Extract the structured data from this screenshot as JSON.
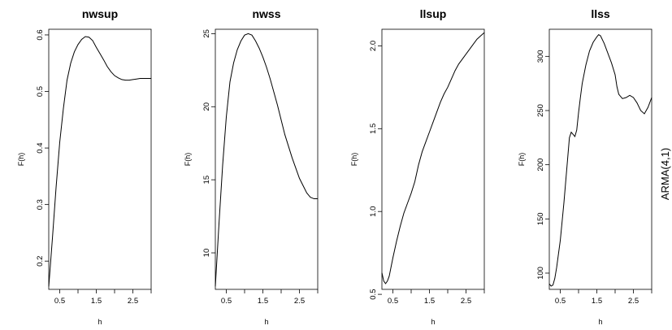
{
  "side_label": "ARMA(4,1)",
  "chart_data": [
    {
      "type": "line",
      "title": "nwsup",
      "xlabel": "h",
      "ylabel": "F(h)",
      "xlim": [
        0.2,
        3.0
      ],
      "ylim": [
        0.15,
        0.61
      ],
      "xticks": [
        "0.5",
        "1.5",
        "2.5"
      ],
      "xtick_values": [
        0.5,
        1.5,
        2.5
      ],
      "xminor": [
        1.0,
        2.0,
        3.0
      ],
      "yticks": [
        "0.2",
        "0.3",
        "0.4",
        "0.5",
        "0.6"
      ],
      "ytick_values": [
        0.2,
        0.3,
        0.4,
        0.5,
        0.6
      ],
      "series": [
        {
          "x": [
            0.2,
            0.3,
            0.4,
            0.5,
            0.6,
            0.7,
            0.8,
            0.9,
            1.0,
            1.1,
            1.2,
            1.3,
            1.4,
            1.5,
            1.6,
            1.7,
            1.8,
            1.9,
            2.0,
            2.1,
            2.2,
            2.3,
            2.4,
            2.5,
            2.6,
            2.7,
            2.8,
            2.9,
            3.0
          ],
          "y": [
            0.155,
            0.24,
            0.33,
            0.41,
            0.47,
            0.52,
            0.55,
            0.57,
            0.583,
            0.592,
            0.597,
            0.596,
            0.59,
            0.578,
            0.567,
            0.556,
            0.544,
            0.535,
            0.528,
            0.524,
            0.521,
            0.52,
            0.52,
            0.521,
            0.522,
            0.523,
            0.523,
            0.523,
            0.523
          ]
        }
      ]
    },
    {
      "type": "line",
      "title": "nwss",
      "xlabel": "h",
      "ylabel": "F(h)",
      "xlim": [
        0.2,
        3.0
      ],
      "ylim": [
        7.5,
        25.3
      ],
      "xticks": [
        "0.5",
        "1.5",
        "2.5"
      ],
      "xtick_values": [
        0.5,
        1.5,
        2.5
      ],
      "xminor": [
        1.0,
        2.0,
        3.0
      ],
      "yticks": [
        "10",
        "15",
        "20",
        "25"
      ],
      "ytick_values": [
        10,
        15,
        20,
        25
      ],
      "series": [
        {
          "x": [
            0.2,
            0.3,
            0.4,
            0.5,
            0.6,
            0.7,
            0.8,
            0.9,
            1.0,
            1.1,
            1.2,
            1.3,
            1.4,
            1.5,
            1.6,
            1.7,
            1.8,
            1.9,
            2.0,
            2.1,
            2.2,
            2.3,
            2.4,
            2.5,
            2.6,
            2.7,
            2.8,
            2.9,
            3.0
          ],
          "y": [
            7.7,
            12.0,
            16.0,
            19.3,
            21.7,
            23.0,
            23.9,
            24.5,
            24.9,
            25.0,
            24.9,
            24.5,
            24.0,
            23.4,
            22.7,
            21.9,
            21.0,
            20.1,
            19.1,
            18.1,
            17.3,
            16.5,
            15.8,
            15.1,
            14.6,
            14.1,
            13.8,
            13.7,
            13.7
          ]
        }
      ]
    },
    {
      "type": "line",
      "title": "llsup",
      "xlabel": "h",
      "ylabel": "F(h)",
      "xlim": [
        0.2,
        3.0
      ],
      "ylim": [
        0.53,
        2.1
      ],
      "xticks": [
        "0.5",
        "1.5",
        "2.5"
      ],
      "xtick_values": [
        0.5,
        1.5,
        2.5
      ],
      "xminor": [
        1.0,
        2.0,
        3.0
      ],
      "yticks": [
        "0.5",
        "1.0",
        "1.5",
        "2.0"
      ],
      "ytick_values": [
        0.5,
        1.0,
        1.5,
        2.0
      ],
      "series": [
        {
          "x": [
            0.2,
            0.25,
            0.3,
            0.35,
            0.4,
            0.5,
            0.6,
            0.7,
            0.8,
            0.9,
            1.0,
            1.1,
            1.2,
            1.3,
            1.4,
            1.5,
            1.6,
            1.7,
            1.8,
            1.9,
            2.0,
            2.1,
            2.2,
            2.3,
            2.4,
            2.5,
            2.6,
            2.7,
            2.8,
            2.9,
            3.0
          ],
          "y": [
            0.63,
            0.58,
            0.565,
            0.58,
            0.61,
            0.72,
            0.82,
            0.91,
            0.99,
            1.05,
            1.11,
            1.18,
            1.28,
            1.36,
            1.42,
            1.48,
            1.54,
            1.6,
            1.66,
            1.71,
            1.75,
            1.8,
            1.85,
            1.89,
            1.92,
            1.95,
            1.98,
            2.01,
            2.04,
            2.06,
            2.08
          ]
        }
      ]
    },
    {
      "type": "line",
      "title": "llss",
      "xlabel": "h",
      "ylabel": "F(h)",
      "xlim": [
        0.2,
        3.0
      ],
      "ylim": [
        85,
        325
      ],
      "xticks": [
        "0.5",
        "1.5",
        "2.5"
      ],
      "xtick_values": [
        0.5,
        1.5,
        2.5
      ],
      "xminor": [
        1.0,
        2.0,
        3.0
      ],
      "yticks": [
        "100",
        "150",
        "200",
        "250",
        "300"
      ],
      "ytick_values": [
        100,
        150,
        200,
        250,
        300
      ],
      "series": [
        {
          "x": [
            0.2,
            0.25,
            0.3,
            0.35,
            0.4,
            0.5,
            0.6,
            0.7,
            0.75,
            0.8,
            0.85,
            0.9,
            0.95,
            1.0,
            1.05,
            1.1,
            1.2,
            1.3,
            1.4,
            1.5,
            1.55,
            1.6,
            1.7,
            1.8,
            1.9,
            2.0,
            2.05,
            2.1,
            2.2,
            2.3,
            2.4,
            2.5,
            2.6,
            2.7,
            2.8,
            2.9,
            3.0
          ],
          "y": [
            90,
            88,
            89,
            95,
            105,
            130,
            165,
            205,
            225,
            230,
            228,
            226,
            232,
            248,
            262,
            275,
            292,
            305,
            313,
            318,
            320,
            319,
            312,
            303,
            294,
            283,
            272,
            265,
            261,
            262,
            264,
            262,
            257,
            250,
            247,
            253,
            262
          ]
        }
      ]
    }
  ]
}
